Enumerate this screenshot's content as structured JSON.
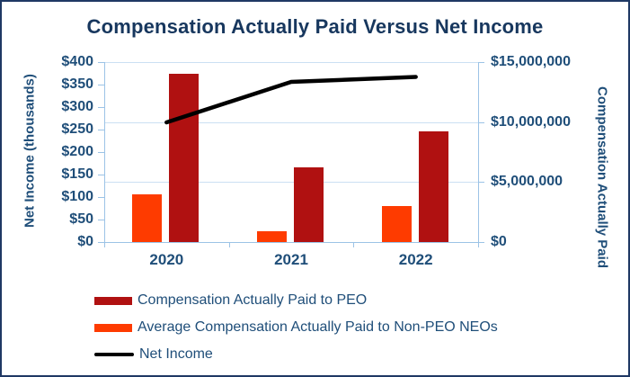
{
  "title": "Compensation Actually Paid Versus Net Income",
  "axes": {
    "left": {
      "title": "Net Income (thousands)",
      "ticks": [
        "$400",
        "$350",
        "$300",
        "$250",
        "$200",
        "$150",
        "$100",
        "$50",
        "$0"
      ]
    },
    "right": {
      "title": "Compensation Actually Paid",
      "ticks": [
        "$15,000,000",
        "$10,000,000",
        "$5,000,000",
        "$0"
      ]
    },
    "x": {
      "categories": [
        "2020",
        "2021",
        "2022"
      ]
    }
  },
  "legend": [
    {
      "label": "Compensation Actually Paid to PEO",
      "swatch": "bar",
      "color": "#B01111"
    },
    {
      "label": "Average Compensation Actually Paid to Non-PEO NEOs",
      "swatch": "bar",
      "color": "#FE3B00"
    },
    {
      "label": "Net Income",
      "swatch": "line",
      "color": "#000000"
    }
  ],
  "chart_data": {
    "type": "bar",
    "subtype": "combo-bar-line-dual-axis",
    "title": "Compensation Actually Paid Versus Net Income",
    "categories": [
      "2020",
      "2021",
      "2022"
    ],
    "series": [
      {
        "name": "Compensation Actually Paid to PEO",
        "type": "bar",
        "axis": "right",
        "color": "#B01111",
        "values": [
          14000000,
          6200000,
          9250000
        ]
      },
      {
        "name": "Average Compensation Actually Paid to Non-PEO NEOs",
        "type": "bar",
        "axis": "right",
        "color": "#FE3B00",
        "values": [
          4000000,
          900000,
          3000000
        ]
      },
      {
        "name": "Net Income",
        "type": "line",
        "axis": "left",
        "color": "#000000",
        "values": [
          266,
          356,
          367
        ]
      }
    ],
    "left_axis": {
      "label": "Net Income (thousands)",
      "range": [
        0,
        400
      ],
      "tick_step": 50
    },
    "right_axis": {
      "label": "Compensation Actually Paid",
      "range": [
        0,
        15000000
      ],
      "tick_step": 5000000
    },
    "grid": "horizontal gridlines at right-axis tick intervals",
    "legend_position": "bottom-left"
  },
  "colors": {
    "bar_peo": "#B01111",
    "bar_non_peo": "#FE3B00",
    "line": "#000000",
    "grid": "#CBE0F3",
    "axis": "#9CC3E6",
    "tick_text": "#1F4E79",
    "title_text": "#17375E",
    "border": "#1F3864",
    "background": "#FFFFFF"
  }
}
